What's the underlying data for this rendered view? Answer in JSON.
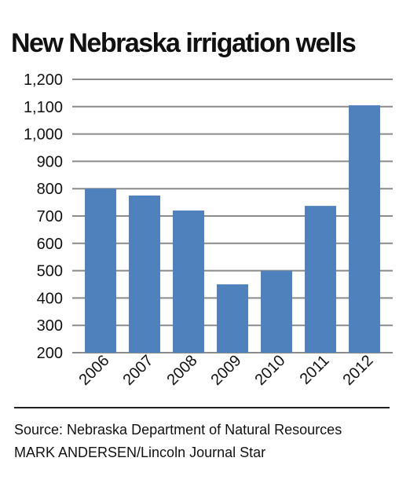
{
  "chart_data": {
    "type": "bar",
    "title": "New Nebraska irrigation wells",
    "categories": [
      "2006",
      "2007",
      "2008",
      "2009",
      "2010",
      "2011",
      "2012"
    ],
    "values": [
      800,
      775,
      720,
      450,
      500,
      737,
      1105
    ],
    "ylim": [
      200,
      1200
    ],
    "yticks": [
      "200",
      "300",
      "400",
      "500",
      "600",
      "700",
      "800",
      "900",
      "1,000",
      "1,100",
      "1,200"
    ],
    "ytick_values": [
      200,
      300,
      400,
      500,
      600,
      700,
      800,
      900,
      1000,
      1100,
      1200
    ],
    "grid": true,
    "xlabel": "",
    "ylabel": "",
    "bar_color": "#4f81bd"
  },
  "footer": {
    "source": "Source: Nebraska Department of Natural Resources",
    "credit": "MARK ANDERSEN/Lincoln Journal Star"
  }
}
